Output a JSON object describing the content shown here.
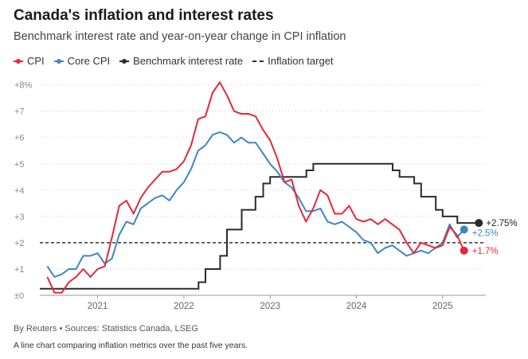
{
  "header": {
    "title": "Canada's inflation and interest rates",
    "subtitle": "Benchmark interest rate and year-on-year change in CPI inflation"
  },
  "footer": {
    "source": "By Reuters • Sources: Statistics Canada, LSEG",
    "caption": "A line chart comparing inflation metrics over the past five years."
  },
  "chart_data": {
    "type": "line",
    "title": "Canada's inflation and interest rates",
    "subtitle": "Benchmark interest rate and year-on-year change in CPI inflation",
    "xlabel": "",
    "ylabel": "",
    "x_range": [
      2020.33,
      2025.5
    ],
    "ylim": [
      0,
      8.2
    ],
    "y_ticks": [
      0,
      1,
      2,
      3,
      4,
      5,
      6,
      7,
      8
    ],
    "y_tick_labels": [
      "±0",
      "+1",
      "+2",
      "+3",
      "+4",
      "+5",
      "+6",
      "+7",
      "+8%"
    ],
    "x_ticks": [
      2021,
      2022,
      2023,
      2024,
      2025
    ],
    "x_tick_labels": [
      "2021",
      "2022",
      "2023",
      "2024",
      "2025"
    ],
    "grid": "horizontal-dotted",
    "legend_position": "top-left",
    "series": [
      {
        "name": "CPI",
        "color": "#e8263a",
        "line_style": "solid",
        "start": 2020.417,
        "step": 0.0833,
        "values": [
          0.7,
          0.1,
          0.1,
          0.5,
          0.7,
          1.0,
          0.7,
          1.0,
          1.1,
          2.2,
          3.4,
          3.6,
          3.1,
          3.7,
          4.1,
          4.4,
          4.7,
          4.7,
          4.8,
          5.1,
          5.7,
          6.7,
          6.8,
          7.7,
          8.1,
          7.6,
          7.0,
          6.9,
          6.9,
          6.8,
          6.3,
          5.9,
          5.2,
          4.3,
          4.4,
          3.4,
          2.8,
          3.3,
          4.0,
          3.8,
          3.1,
          3.1,
          3.4,
          2.9,
          2.8,
          2.9,
          2.7,
          2.9,
          2.7,
          2.5,
          2.0,
          1.6,
          2.0,
          1.9,
          1.8,
          1.9,
          2.6,
          2.3,
          1.7
        ],
        "end_label": "+1.7%"
      },
      {
        "name": "Core CPI",
        "color": "#3d86c6",
        "line_style": "solid",
        "start": 2020.417,
        "step": 0.0833,
        "values": [
          1.1,
          0.7,
          0.8,
          1.0,
          1.0,
          1.5,
          1.5,
          1.6,
          1.2,
          1.4,
          2.3,
          2.8,
          2.7,
          3.3,
          3.5,
          3.7,
          3.8,
          3.6,
          4.0,
          4.3,
          4.8,
          5.5,
          5.7,
          6.1,
          6.2,
          6.1,
          5.8,
          6.0,
          5.8,
          5.8,
          5.4,
          5.0,
          4.7,
          4.3,
          4.1,
          3.7,
          3.2,
          3.2,
          3.3,
          2.8,
          2.7,
          2.8,
          2.6,
          2.4,
          2.1,
          2.0,
          1.6,
          1.8,
          1.9,
          1.7,
          1.5,
          1.6,
          1.7,
          1.6,
          1.8,
          2.0,
          2.7,
          2.2,
          2.5
        ],
        "end_label": "+2.5%"
      },
      {
        "name": "Benchmark interest rate",
        "color": "#2b2b2b",
        "line_style": "step",
        "points": [
          [
            2020.33,
            0.25
          ],
          [
            2022.17,
            0.5
          ],
          [
            2022.25,
            1.0
          ],
          [
            2022.42,
            1.5
          ],
          [
            2022.5,
            2.5
          ],
          [
            2022.67,
            3.25
          ],
          [
            2022.83,
            3.75
          ],
          [
            2022.92,
            4.25
          ],
          [
            2023.0,
            4.5
          ],
          [
            2023.42,
            4.75
          ],
          [
            2023.5,
            5.0
          ],
          [
            2024.42,
            4.75
          ],
          [
            2024.5,
            4.5
          ],
          [
            2024.67,
            4.25
          ],
          [
            2024.75,
            3.75
          ],
          [
            2024.92,
            3.25
          ],
          [
            2025.0,
            3.0
          ],
          [
            2025.17,
            2.75
          ],
          [
            2025.42,
            2.75
          ]
        ],
        "end_label": "+2.75%"
      },
      {
        "name": "Inflation target",
        "color": "#333333",
        "line_style": "dashed",
        "value": 2.0
      }
    ]
  }
}
